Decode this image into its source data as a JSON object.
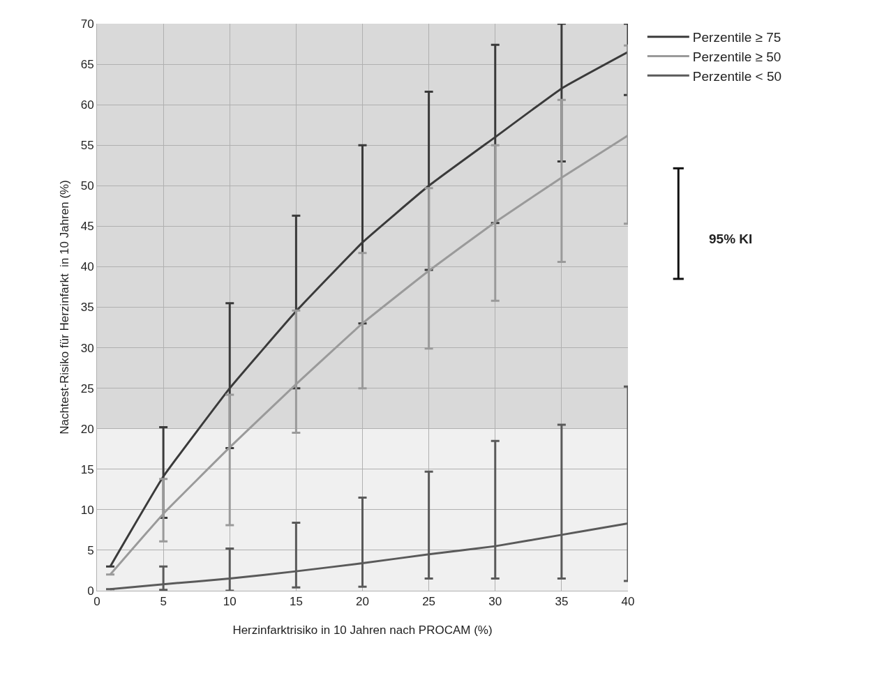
{
  "chart_data": {
    "type": "line",
    "xlabel": "Herzinfarktrisiko in 10 Jahren nach PROCAM (%)",
    "ylabel": "Nachtest-Risiko für Herzinfarkt  in 10 Jahren (%)",
    "x": [
      1,
      5,
      10,
      15,
      20,
      25,
      30,
      35,
      40
    ],
    "series": [
      {
        "name": "Perzentile ≥ 75",
        "color": "#3a3a3a",
        "values": [
          3,
          14.1,
          25,
          34.5,
          43,
          50,
          56,
          62,
          66.5
        ],
        "errors": [
          null,
          [
            9,
            20.2
          ],
          [
            17.6,
            35.5
          ],
          [
            25,
            46.3
          ],
          [
            33,
            55
          ],
          [
            39.6,
            61.6
          ],
          [
            45.4,
            67.4
          ],
          [
            53,
            70
          ],
          [
            61.2,
            70
          ]
        ]
      },
      {
        "name": "Perzentile ≥ 50",
        "color": "#9a9a9a",
        "values": [
          2,
          9.5,
          17.7,
          25.5,
          33,
          39.5,
          45.5,
          51,
          56.2
        ],
        "errors": [
          null,
          [
            6.1,
            13.8
          ],
          [
            8.1,
            24.2
          ],
          [
            19.5,
            34.6
          ],
          [
            25,
            41.7
          ],
          [
            29.9,
            49.7
          ],
          [
            35.8,
            55
          ],
          [
            40.6,
            60.6
          ],
          [
            45.3,
            67.3
          ]
        ]
      },
      {
        "name": "Perzentile < 50",
        "color": "#5a5a5a",
        "values": [
          0.2,
          0.8,
          1.5,
          2.4,
          3.4,
          4.5,
          5.5,
          6.9,
          8.3
        ],
        "errors": [
          null,
          [
            0.1,
            3
          ],
          [
            0,
            5.2
          ],
          [
            0.4,
            8.4
          ],
          [
            0.5,
            11.5
          ],
          [
            1.5,
            14.7
          ],
          [
            1.5,
            18.5
          ],
          [
            1.5,
            20.5
          ],
          [
            1.2,
            25.2
          ]
        ]
      }
    ],
    "annotations": [
      "95% KI"
    ],
    "xlim": [
      0,
      40
    ],
    "xticks": [
      0,
      5,
      10,
      15,
      20,
      25,
      30,
      35,
      40
    ],
    "ylim": [
      0,
      70
    ],
    "yticks": [
      0,
      5,
      10,
      15,
      20,
      25,
      30,
      35,
      40,
      45,
      50,
      55,
      60,
      65,
      70
    ],
    "bands": [
      {
        "axis": "y",
        "from": 0,
        "to": 20,
        "color": "#f0f0f0"
      },
      {
        "axis": "y",
        "from": 20,
        "to": 70,
        "color": "#d9d9d9"
      }
    ],
    "grid": true,
    "legend": "right",
    "marker": "none",
    "line_style": "solid"
  }
}
